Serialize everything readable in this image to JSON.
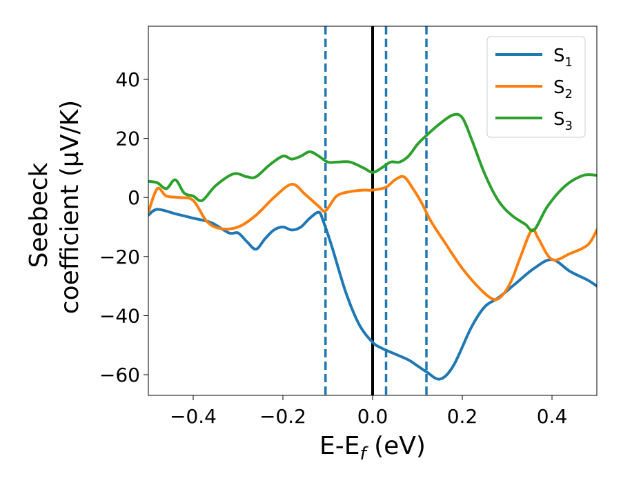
{
  "chart_data": {
    "type": "line",
    "xlabel": "E-E",
    "xlabel_sub": "f",
    "xlabel_unit": " (eV)",
    "ylabel_line1": "Seebeck",
    "ylabel_line2": "coefficient  (μV/K)",
    "xlim": [
      -0.5,
      0.5
    ],
    "ylim": [
      -67,
      58
    ],
    "x_ticks": [
      -0.4,
      -0.2,
      0.0,
      0.2,
      0.4
    ],
    "x_tick_labels": [
      "−0.4",
      "−0.2",
      "0.0",
      "0.2",
      "0.4"
    ],
    "y_ticks": [
      40,
      20,
      0,
      -20,
      -40,
      -60
    ],
    "y_tick_labels": [
      "40",
      "20",
      "0",
      "−20",
      "−40",
      "−60"
    ],
    "grid": false,
    "legend_position": "top-right",
    "vertical_lines": [
      {
        "x": 0.0,
        "style": "solid",
        "color": "#000000"
      },
      {
        "x": -0.105,
        "style": "dashed",
        "color": "#1f77b4"
      },
      {
        "x": 0.03,
        "style": "dashed",
        "color": "#1f77b4"
      },
      {
        "x": 0.12,
        "style": "dashed",
        "color": "#1f77b4"
      }
    ],
    "series": [
      {
        "name": "S",
        "subscript": "1",
        "color": "#1f77b4",
        "x": [
          -0.5,
          -0.48,
          -0.44,
          -0.4,
          -0.36,
          -0.32,
          -0.3,
          -0.28,
          -0.26,
          -0.24,
          -0.22,
          -0.2,
          -0.18,
          -0.16,
          -0.14,
          -0.12,
          -0.11,
          -0.09,
          -0.06,
          -0.03,
          0.0,
          0.02,
          0.05,
          0.08,
          0.1,
          0.12,
          0.15,
          0.18,
          0.22,
          0.25,
          0.28,
          0.32,
          0.36,
          0.4,
          0.44,
          0.48,
          0.5
        ],
        "y": [
          -6,
          -4,
          -5.5,
          -7,
          -8.5,
          -12,
          -12,
          -15,
          -17.5,
          -14,
          -11,
          -10,
          -11,
          -10,
          -7,
          -5,
          -8,
          -17,
          -32,
          -43,
          -49,
          -51,
          -53,
          -55,
          -57,
          -59,
          -61.5,
          -57,
          -44,
          -37,
          -34,
          -29,
          -24,
          -21,
          -25,
          -28,
          -30
        ]
      },
      {
        "name": "S",
        "subscript": "2",
        "color": "#ff7f0e",
        "x": [
          -0.5,
          -0.48,
          -0.46,
          -0.43,
          -0.4,
          -0.37,
          -0.34,
          -0.3,
          -0.26,
          -0.22,
          -0.18,
          -0.15,
          -0.12,
          -0.105,
          -0.08,
          -0.05,
          -0.02,
          0.0,
          0.03,
          0.05,
          0.07,
          0.09,
          0.11,
          0.13,
          0.16,
          0.2,
          0.24,
          0.27,
          0.29,
          0.31,
          0.33,
          0.355,
          0.37,
          0.4,
          0.44,
          0.48,
          0.5
        ],
        "y": [
          -5,
          3,
          0.5,
          0,
          -1,
          -8,
          -10.5,
          -10,
          -6,
          0,
          4.5,
          1,
          -3,
          -4.5,
          0.5,
          2,
          2.5,
          2.5,
          3.5,
          6,
          7,
          3,
          -2,
          -8,
          -15,
          -24,
          -31,
          -34.5,
          -33,
          -28,
          -20,
          -11,
          -14,
          -21,
          -19,
          -16,
          -11
        ]
      },
      {
        "name": "S",
        "subscript": "3",
        "color": "#2ca02c",
        "x": [
          -0.5,
          -0.48,
          -0.46,
          -0.44,
          -0.42,
          -0.4,
          -0.38,
          -0.35,
          -0.31,
          -0.28,
          -0.26,
          -0.23,
          -0.2,
          -0.18,
          -0.16,
          -0.14,
          -0.12,
          -0.1,
          -0.08,
          -0.05,
          -0.02,
          0.0,
          0.02,
          0.04,
          0.06,
          0.08,
          0.1,
          0.12,
          0.15,
          0.18,
          0.2,
          0.22,
          0.25,
          0.28,
          0.31,
          0.34,
          0.36,
          0.39,
          0.43,
          0.47,
          0.5
        ],
        "y": [
          5.5,
          5,
          3,
          6,
          1.5,
          0.5,
          -1,
          4,
          8,
          7,
          7,
          11,
          14,
          13,
          14,
          15.5,
          14,
          12,
          12,
          12,
          10,
          8.5,
          10,
          12,
          12,
          14,
          18,
          21,
          25,
          28,
          27,
          20,
          8,
          -1,
          -6,
          -9,
          -11,
          -3,
          4,
          7.5,
          7.5
        ]
      }
    ]
  }
}
